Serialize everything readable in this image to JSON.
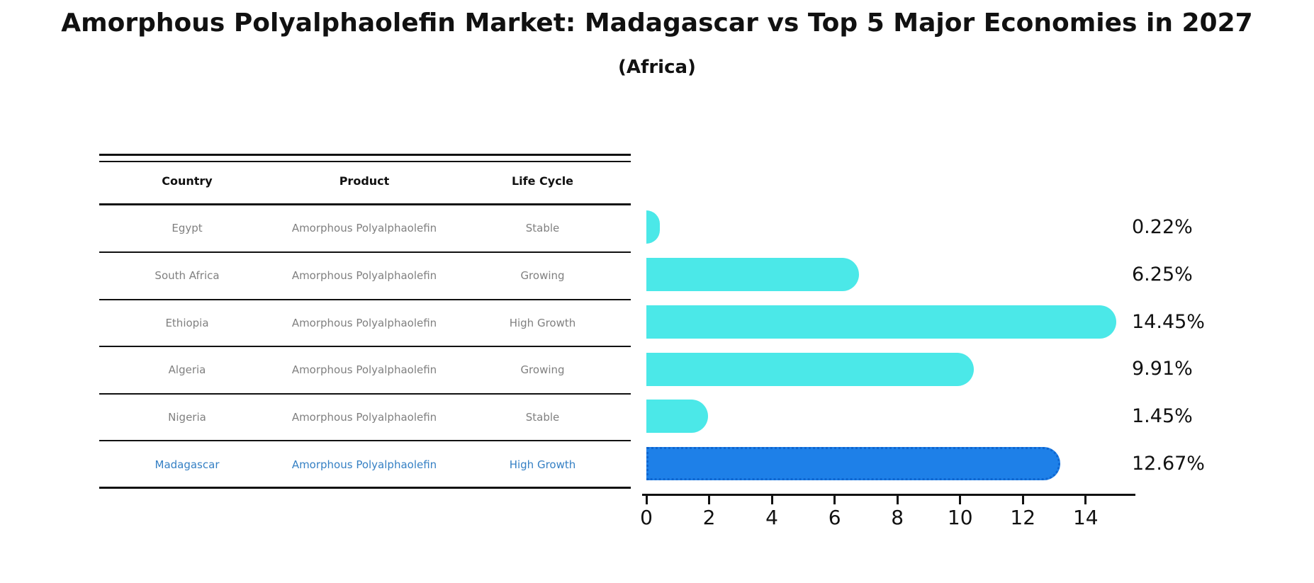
{
  "title": "Amorphous Polyalphaolefin Market: Madagascar vs Top 5 Major Economies in 2027",
  "subtitle": "(Africa)",
  "table": {
    "headers": [
      "Country",
      "Product",
      "Life Cycle"
    ],
    "rows": [
      {
        "country": "Egypt",
        "product": "Amorphous Polyalphaolefin",
        "life_cycle": "Stable"
      },
      {
        "country": "South Africa",
        "product": "Amorphous Polyalphaolefin",
        "life_cycle": "Growing"
      },
      {
        "country": "Ethiopia",
        "product": "Amorphous Polyalphaolefin",
        "life_cycle": "High Growth"
      },
      {
        "country": "Algeria",
        "product": "Amorphous Polyalphaolefin",
        "life_cycle": "Growing"
      },
      {
        "country": "Nigeria",
        "product": "Amorphous Polyalphaolefin",
        "life_cycle": "Stable"
      },
      {
        "country": "Madagascar",
        "product": "Amorphous Polyalphaolefin",
        "life_cycle": "High Growth"
      }
    ],
    "highlight_row": "Madagascar"
  },
  "chart_data": {
    "type": "bar",
    "orientation": "horizontal",
    "categories": [
      "Egypt",
      "South Africa",
      "Ethiopia",
      "Algeria",
      "Nigeria",
      "Madagascar"
    ],
    "values": [
      0.22,
      6.25,
      14.45,
      9.91,
      1.45,
      12.67
    ],
    "value_labels": [
      "0.22%",
      "6.25%",
      "14.45%",
      "9.91%",
      "1.45%",
      "12.67%"
    ],
    "x_ticks": [
      0,
      2,
      4,
      6,
      8,
      10,
      12,
      14
    ],
    "xlim": [
      0,
      15.45
    ],
    "grid": false,
    "legend": false,
    "bar_color": "#4BE8E8",
    "highlight_index": 5,
    "highlight_color": "#1E80E8",
    "highlight_border_color": "#0F66D0",
    "highlight_border_style": "dotted",
    "axis_color": "#111111",
    "muted_text_color": "#808080",
    "highlight_text_color": "#3580C4"
  }
}
